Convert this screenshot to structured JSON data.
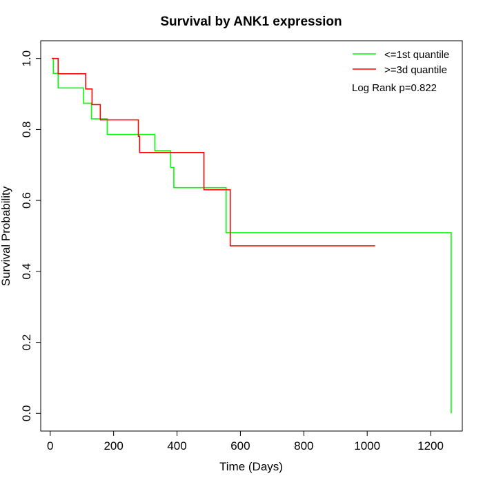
{
  "chart_data": {
    "type": "line",
    "title": "Survival by ANK1 expression",
    "xlabel": "Time (Days)",
    "ylabel": "Survival Probability",
    "xlim": [
      -30,
      1300
    ],
    "ylim": [
      -0.05,
      1.05
    ],
    "xticks": [
      0,
      200,
      400,
      600,
      800,
      1000,
      1200
    ],
    "yticks": [
      0.0,
      0.2,
      0.4,
      0.6,
      0.8,
      1.0
    ],
    "xtick_labels": [
      "0",
      "200",
      "400",
      "600",
      "800",
      "1000",
      "1200"
    ],
    "ytick_labels": [
      "0.0",
      "0.2",
      "0.4",
      "0.6",
      "0.8",
      "1.0"
    ],
    "grid": false,
    "legend_position": "top-right",
    "annotation": "Log Rank p=0.822",
    "series": [
      {
        "name": "<=1st quantile",
        "color": "#00ff00",
        "steps": [
          [
            5,
            1.0
          ],
          [
            10,
            0.958
          ],
          [
            25,
            0.917
          ],
          [
            105,
            0.874
          ],
          [
            130,
            0.83
          ],
          [
            180,
            0.786
          ],
          [
            330,
            0.74
          ],
          [
            380,
            0.693
          ],
          [
            390,
            0.636
          ],
          [
            555,
            0.509
          ],
          [
            1265,
            0.0
          ]
        ],
        "end": 1265
      },
      {
        "name": ">=3d quantile",
        "color": "#ff0000",
        "steps": [
          [
            5,
            1.0
          ],
          [
            25,
            0.957
          ],
          [
            112,
            0.914
          ],
          [
            132,
            0.87
          ],
          [
            158,
            0.827
          ],
          [
            278,
            0.781
          ],
          [
            282,
            0.735
          ],
          [
            485,
            0.63
          ],
          [
            568,
            0.472
          ]
        ],
        "end": 1025
      }
    ]
  }
}
